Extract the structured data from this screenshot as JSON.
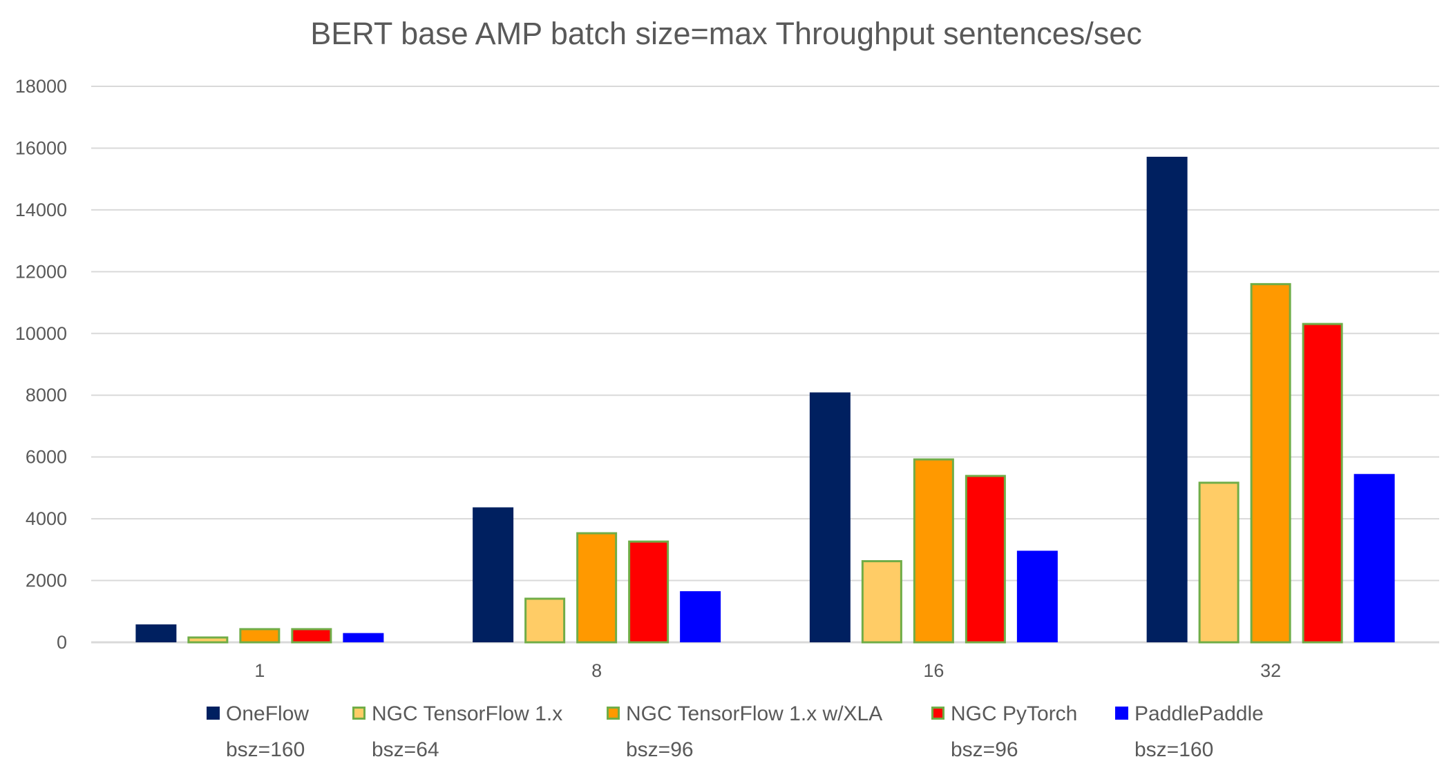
{
  "chart_data": {
    "type": "bar",
    "title": "BERT base AMP batch size=max Throughput sentences/sec",
    "xlabel": "",
    "ylabel": "",
    "categories": [
      "1",
      "8",
      "16",
      "32"
    ],
    "ylim": [
      0,
      18000
    ],
    "yticks": [
      "0",
      "2000",
      "4000",
      "6000",
      "8000",
      "10000",
      "12000",
      "14000",
      "16000",
      "18000"
    ],
    "grid": true,
    "legend_position": "bottom",
    "series": [
      {
        "name": "OneFlow",
        "sub": "bsz=160",
        "color": "#002060",
        "border": "#002060",
        "values": [
          580,
          4370,
          8090,
          15720
        ]
      },
      {
        "name": "NGC TensorFlow 1.x",
        "sub": "bsz=64",
        "color": "#FFCC66",
        "border": "#70AD47",
        "values": [
          190,
          1445,
          2660,
          5200
        ]
      },
      {
        "name": "NGC TensorFlow 1.x w/XLA",
        "sub": "bsz=96",
        "color": "#FF9900",
        "border": "#70AD47",
        "values": [
          460,
          3565,
          5955,
          11630
        ]
      },
      {
        "name": "NGC PyTorch",
        "sub": "bsz=96",
        "color": "#FF0000",
        "border": "#70AD47",
        "values": [
          460,
          3295,
          5420,
          10340
        ]
      },
      {
        "name": "PaddlePaddle",
        "sub": "bsz=160",
        "color": "#0000FF",
        "border": "#0000FF",
        "values": [
          300,
          1655,
          2965,
          5450
        ]
      }
    ]
  }
}
